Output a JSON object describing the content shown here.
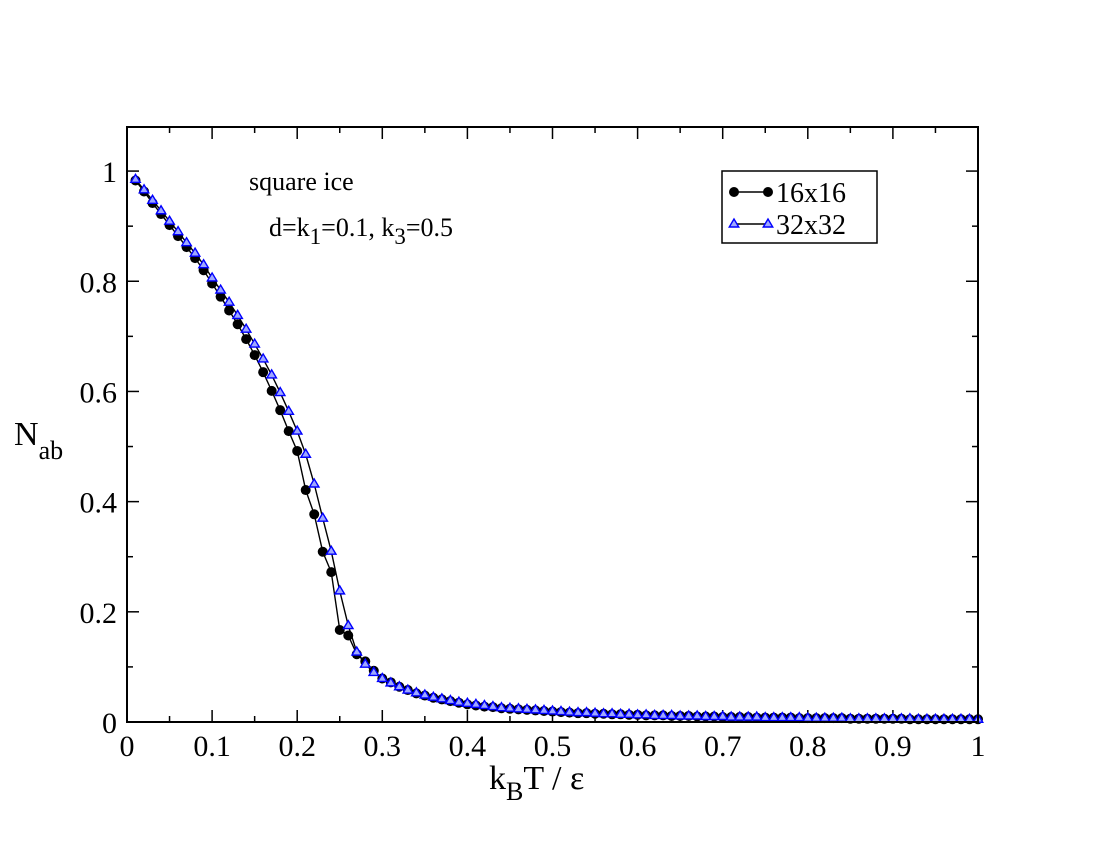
{
  "chart_data": {
    "type": "line",
    "title": "",
    "xlabel": {
      "k": "k",
      "sub": "B",
      "rest": "T / ε"
    },
    "ylabel": {
      "main": "N",
      "sub": "ab"
    },
    "xlim": [
      0,
      1
    ],
    "ylim": [
      0,
      1.08
    ],
    "xticks": [
      "0",
      "0.1",
      "0.2",
      "0.3",
      "0.4",
      "0.5",
      "0.6",
      "0.7",
      "0.8",
      "0.9",
      "1"
    ],
    "yticks": [
      "0",
      "0.2",
      "0.4",
      "0.6",
      "0.8",
      "1"
    ],
    "grid": false,
    "legend_position": "top-right",
    "annotation": {
      "line1": "square ice",
      "line2": {
        "a": "d=k",
        "s1": "1",
        "b": "=0.1, k",
        "s3": "3",
        "c": "=0.5"
      }
    },
    "series": [
      {
        "name": "16x16",
        "color": "#000000",
        "marker": "circle",
        "x": [
          0.01,
          0.02,
          0.03,
          0.04,
          0.05,
          0.06,
          0.07,
          0.08,
          0.09,
          0.1,
          0.11,
          0.12,
          0.13,
          0.14,
          0.15,
          0.16,
          0.17,
          0.18,
          0.19,
          0.2,
          0.21,
          0.22,
          0.23,
          0.24,
          0.25,
          0.26,
          0.27,
          0.28,
          0.29,
          0.3,
          0.31,
          0.32,
          0.33,
          0.34,
          0.35,
          0.36,
          0.37,
          0.38,
          0.39,
          0.4,
          0.41,
          0.42,
          0.43,
          0.44,
          0.45,
          0.46,
          0.47,
          0.48,
          0.49,
          0.5,
          0.51,
          0.52,
          0.53,
          0.54,
          0.55,
          0.56,
          0.57,
          0.58,
          0.59,
          0.6,
          0.61,
          0.62,
          0.63,
          0.64,
          0.65,
          0.66,
          0.67,
          0.68,
          0.69,
          0.7,
          0.71,
          0.72,
          0.73,
          0.74,
          0.75,
          0.76,
          0.77,
          0.78,
          0.79,
          0.8,
          0.81,
          0.82,
          0.83,
          0.84,
          0.85,
          0.86,
          0.87,
          0.88,
          0.89,
          0.9,
          0.91,
          0.92,
          0.93,
          0.94,
          0.95,
          0.96,
          0.97,
          0.98,
          0.99,
          1.0
        ],
        "y": [
          0.983,
          0.963,
          0.942,
          0.922,
          0.902,
          0.882,
          0.862,
          0.842,
          0.82,
          0.796,
          0.772,
          0.747,
          0.722,
          0.695,
          0.666,
          0.635,
          0.601,
          0.566,
          0.528,
          0.492,
          0.421,
          0.377,
          0.309,
          0.272,
          0.167,
          0.157,
          0.123,
          0.11,
          0.093,
          0.079,
          0.072,
          0.064,
          0.058,
          0.052,
          0.048,
          0.044,
          0.041,
          0.038,
          0.035,
          0.032,
          0.03,
          0.028,
          0.027,
          0.025,
          0.024,
          0.023,
          0.022,
          0.021,
          0.02,
          0.019,
          0.018,
          0.017,
          0.016,
          0.016,
          0.015,
          0.015,
          0.014,
          0.014,
          0.013,
          0.013,
          0.012,
          0.012,
          0.012,
          0.011,
          0.011,
          0.011,
          0.01,
          0.01,
          0.01,
          0.009,
          0.009,
          0.009,
          0.009,
          0.008,
          0.008,
          0.008,
          0.008,
          0.008,
          0.007,
          0.007,
          0.007,
          0.007,
          0.007,
          0.007,
          0.006,
          0.006,
          0.006,
          0.006,
          0.006,
          0.006,
          0.006,
          0.005,
          0.005,
          0.005,
          0.005,
          0.005,
          0.005,
          0.005,
          0.005,
          0.005
        ]
      },
      {
        "name": "32x32",
        "color": "#0000ff",
        "marker": "triangle",
        "x": [
          0.01,
          0.02,
          0.03,
          0.04,
          0.05,
          0.06,
          0.07,
          0.08,
          0.09,
          0.1,
          0.11,
          0.12,
          0.13,
          0.14,
          0.15,
          0.16,
          0.17,
          0.18,
          0.19,
          0.2,
          0.21,
          0.22,
          0.23,
          0.24,
          0.25,
          0.26,
          0.27,
          0.28,
          0.29,
          0.3,
          0.31,
          0.32,
          0.33,
          0.34,
          0.35,
          0.36,
          0.37,
          0.38,
          0.39,
          0.4,
          0.41,
          0.42,
          0.43,
          0.44,
          0.45,
          0.46,
          0.47,
          0.48,
          0.49,
          0.5,
          0.51,
          0.52,
          0.53,
          0.54,
          0.55,
          0.56,
          0.57,
          0.58,
          0.59,
          0.6,
          0.61,
          0.62,
          0.63,
          0.64,
          0.65,
          0.66,
          0.67,
          0.68,
          0.69,
          0.7,
          0.71,
          0.72,
          0.73,
          0.74,
          0.75,
          0.76,
          0.77,
          0.78,
          0.79,
          0.8,
          0.81,
          0.82,
          0.83,
          0.84,
          0.85,
          0.86,
          0.87,
          0.88,
          0.89,
          0.9,
          0.91,
          0.92,
          0.93,
          0.94,
          0.95,
          0.96,
          0.97,
          0.98,
          0.99,
          1.0
        ],
        "y": [
          0.985,
          0.966,
          0.947,
          0.928,
          0.909,
          0.89,
          0.87,
          0.851,
          0.83,
          0.806,
          0.784,
          0.762,
          0.738,
          0.713,
          0.686,
          0.659,
          0.63,
          0.598,
          0.564,
          0.528,
          0.486,
          0.432,
          0.37,
          0.31,
          0.238,
          0.175,
          0.127,
          0.105,
          0.09,
          0.079,
          0.071,
          0.064,
          0.058,
          0.053,
          0.049,
          0.045,
          0.042,
          0.039,
          0.036,
          0.034,
          0.032,
          0.03,
          0.028,
          0.026,
          0.025,
          0.024,
          0.023,
          0.022,
          0.021,
          0.02,
          0.019,
          0.018,
          0.017,
          0.017,
          0.016,
          0.015,
          0.015,
          0.014,
          0.014,
          0.013,
          0.013,
          0.012,
          0.012,
          0.012,
          0.011,
          0.011,
          0.011,
          0.01,
          0.01,
          0.01,
          0.009,
          0.009,
          0.009,
          0.009,
          0.008,
          0.008,
          0.008,
          0.008,
          0.008,
          0.007,
          0.007,
          0.007,
          0.007,
          0.007,
          0.006,
          0.006,
          0.006,
          0.006,
          0.006,
          0.006,
          0.006,
          0.006,
          0.005,
          0.005,
          0.005,
          0.005,
          0.005,
          0.005,
          0.005,
          0.005
        ]
      }
    ]
  }
}
